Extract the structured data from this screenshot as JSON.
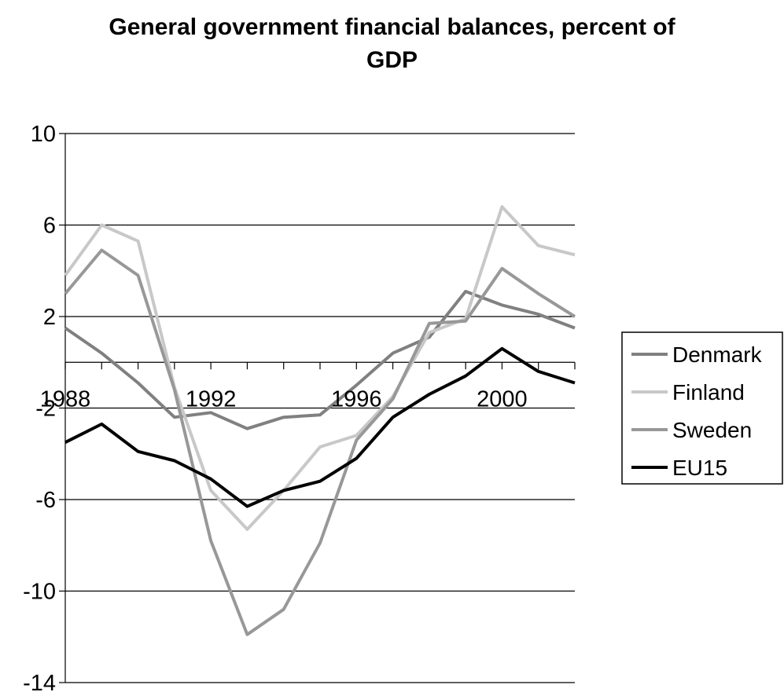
{
  "chart_data": {
    "type": "line",
    "title": [
      "General government financial balances, percent of",
      "GDP"
    ],
    "xlabel": "",
    "ylabel": "",
    "ylim": [
      -14,
      10
    ],
    "yticks": [
      10,
      6,
      2,
      -2,
      -6,
      -10,
      -14
    ],
    "xlim": [
      1988,
      2002
    ],
    "xticks": [
      1988,
      1992,
      1996,
      2000
    ],
    "grid": "horizontal",
    "legend_position": "right",
    "x": [
      1988,
      1989,
      1990,
      1991,
      1992,
      1993,
      1994,
      1995,
      1996,
      1997,
      1998,
      1999,
      2000,
      2001,
      2002
    ],
    "series": [
      {
        "name": "Denmark",
        "color": "#808080",
        "width": 4,
        "values": [
          1.5,
          0.4,
          -0.9,
          -2.4,
          -2.2,
          -2.9,
          -2.4,
          -2.3,
          -1.0,
          0.4,
          1.1,
          3.1,
          2.5,
          2.1,
          1.5
        ]
      },
      {
        "name": "Finland",
        "color": "#c8c8c8",
        "width": 4,
        "values": [
          3.8,
          6.0,
          5.3,
          -1.1,
          -5.6,
          -7.3,
          -5.6,
          -3.7,
          -3.2,
          -1.5,
          1.3,
          1.9,
          6.8,
          5.1,
          4.7
        ]
      },
      {
        "name": "Sweden",
        "color": "#989898",
        "width": 4,
        "values": [
          3.0,
          4.9,
          3.8,
          -1.2,
          -7.8,
          -11.9,
          -10.8,
          -7.9,
          -3.4,
          -1.6,
          1.7,
          1.8,
          4.1,
          3.0,
          2.0
        ]
      },
      {
        "name": "EU15",
        "color": "#000000",
        "width": 4,
        "values": [
          -3.5,
          -2.7,
          -3.9,
          -4.3,
          -5.1,
          -6.3,
          -5.6,
          -5.2,
          -4.2,
          -2.4,
          -1.4,
          -0.6,
          0.6,
          -0.4,
          -0.9
        ]
      }
    ]
  }
}
